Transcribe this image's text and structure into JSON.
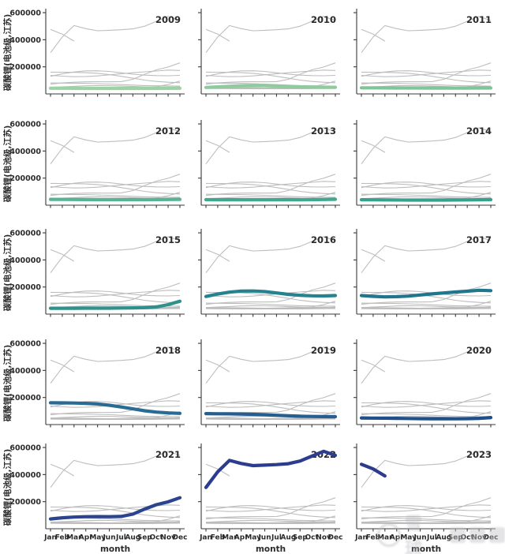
{
  "figure": {
    "ylabel": "碳酸锂(电池级,江苏)",
    "xlabel": "month",
    "watermark": "雪球"
  },
  "chart_data": {
    "type": "line",
    "title": "",
    "layout": "small-multiples 5 rows x 3 cols, one panel per year, all years shown as gray background lines in every panel",
    "categories": [
      "Jan",
      "Feb",
      "Mar",
      "Apr",
      "May",
      "Jun",
      "Jul",
      "Aug",
      "Sep",
      "Oct",
      "Nov",
      "Dec"
    ],
    "xlabel": "month",
    "ylabel": "碳酸锂(电池级,江苏)",
    "ylim": [
      0,
      612000
    ],
    "yticks": [
      200000,
      400000,
      600000
    ],
    "ytick_labels": [
      "200000",
      "400000",
      "600000"
    ],
    "grid": false,
    "background_line_color": "#bdbdbd",
    "panel_years": [
      "2009",
      "2010",
      "2011",
      "2012",
      "2013",
      "2014",
      "2015",
      "2016",
      "2017",
      "2018",
      "2019",
      "2020",
      "2021",
      "2022",
      "2023"
    ],
    "series": [
      {
        "name": "2009",
        "color": "#9CD3A0",
        "values": [
          42000,
          42000,
          41500,
          41000,
          41000,
          41000,
          41000,
          41000,
          41000,
          41000,
          41500,
          42000
        ]
      },
      {
        "name": "2010",
        "color": "#8FCC9D",
        "values": [
          48000,
          52000,
          56000,
          60000,
          62000,
          61000,
          58000,
          55000,
          52000,
          50000,
          49000,
          49000
        ]
      },
      {
        "name": "2011",
        "color": "#80C59A",
        "values": [
          45000,
          45000,
          44500,
          44000,
          44000,
          43500,
          43000,
          43000,
          43000,
          43000,
          43500,
          44000
        ]
      },
      {
        "name": "2012",
        "color": "#58B393",
        "values": [
          43000,
          42500,
          42000,
          41500,
          41000,
          41000,
          41000,
          41000,
          41000,
          41500,
          42000,
          43000
        ]
      },
      {
        "name": "2013",
        "color": "#41A88F",
        "values": [
          41000,
          40500,
          40000,
          40000,
          40000,
          40000,
          40000,
          40000,
          40500,
          41000,
          42000,
          44000
        ]
      },
      {
        "name": "2014",
        "color": "#37A18C",
        "values": [
          40000,
          39500,
          39000,
          38500,
          38000,
          38000,
          38000,
          38000,
          38500,
          39000,
          40000,
          41000
        ]
      },
      {
        "name": "2015",
        "color": "#2E918C",
        "values": [
          43000,
          43000,
          43000,
          43500,
          44000,
          44000,
          45000,
          46000,
          48000,
          53000,
          70000,
          95000
        ]
      },
      {
        "name": "2016",
        "color": "#25828E",
        "values": [
          130000,
          148000,
          162000,
          170000,
          171000,
          166000,
          156000,
          146000,
          139000,
          135000,
          134000,
          137000
        ]
      },
      {
        "name": "2017",
        "color": "#21768E",
        "values": [
          137000,
          131000,
          127000,
          129000,
          133000,
          141000,
          149000,
          156000,
          163000,
          169000,
          176000,
          173000
        ]
      },
      {
        "name": "2018",
        "color": "#296B93",
        "values": [
          161000,
          160000,
          159000,
          157000,
          152000,
          143000,
          130000,
          116000,
          102000,
          92000,
          86000,
          83000
        ]
      },
      {
        "name": "2019",
        "color": "#265E90",
        "values": [
          81000,
          80000,
          79000,
          78000,
          76000,
          73000,
          69000,
          65000,
          62000,
          60000,
          59000,
          58000
        ]
      },
      {
        "name": "2020",
        "color": "#1F4F89",
        "values": [
          49000,
          48000,
          47000,
          46000,
          45000,
          44000,
          43000,
          43000,
          43000,
          44000,
          46000,
          52000
        ]
      },
      {
        "name": "2021",
        "color": "#2A4490",
        "values": [
          72000,
          81000,
          86000,
          89000,
          90000,
          89000,
          91000,
          108000,
          145000,
          178000,
          199000,
          229000
        ]
      },
      {
        "name": "2022",
        "color": "#2C3C8E",
        "values": [
          305000,
          420000,
          505000,
          482000,
          466000,
          470000,
          474000,
          480000,
          500000,
          536000,
          572000,
          542000
        ]
      },
      {
        "name": "2023",
        "color": "#2E3A8D",
        "values": [
          476000,
          442000,
          390000
        ]
      }
    ]
  }
}
